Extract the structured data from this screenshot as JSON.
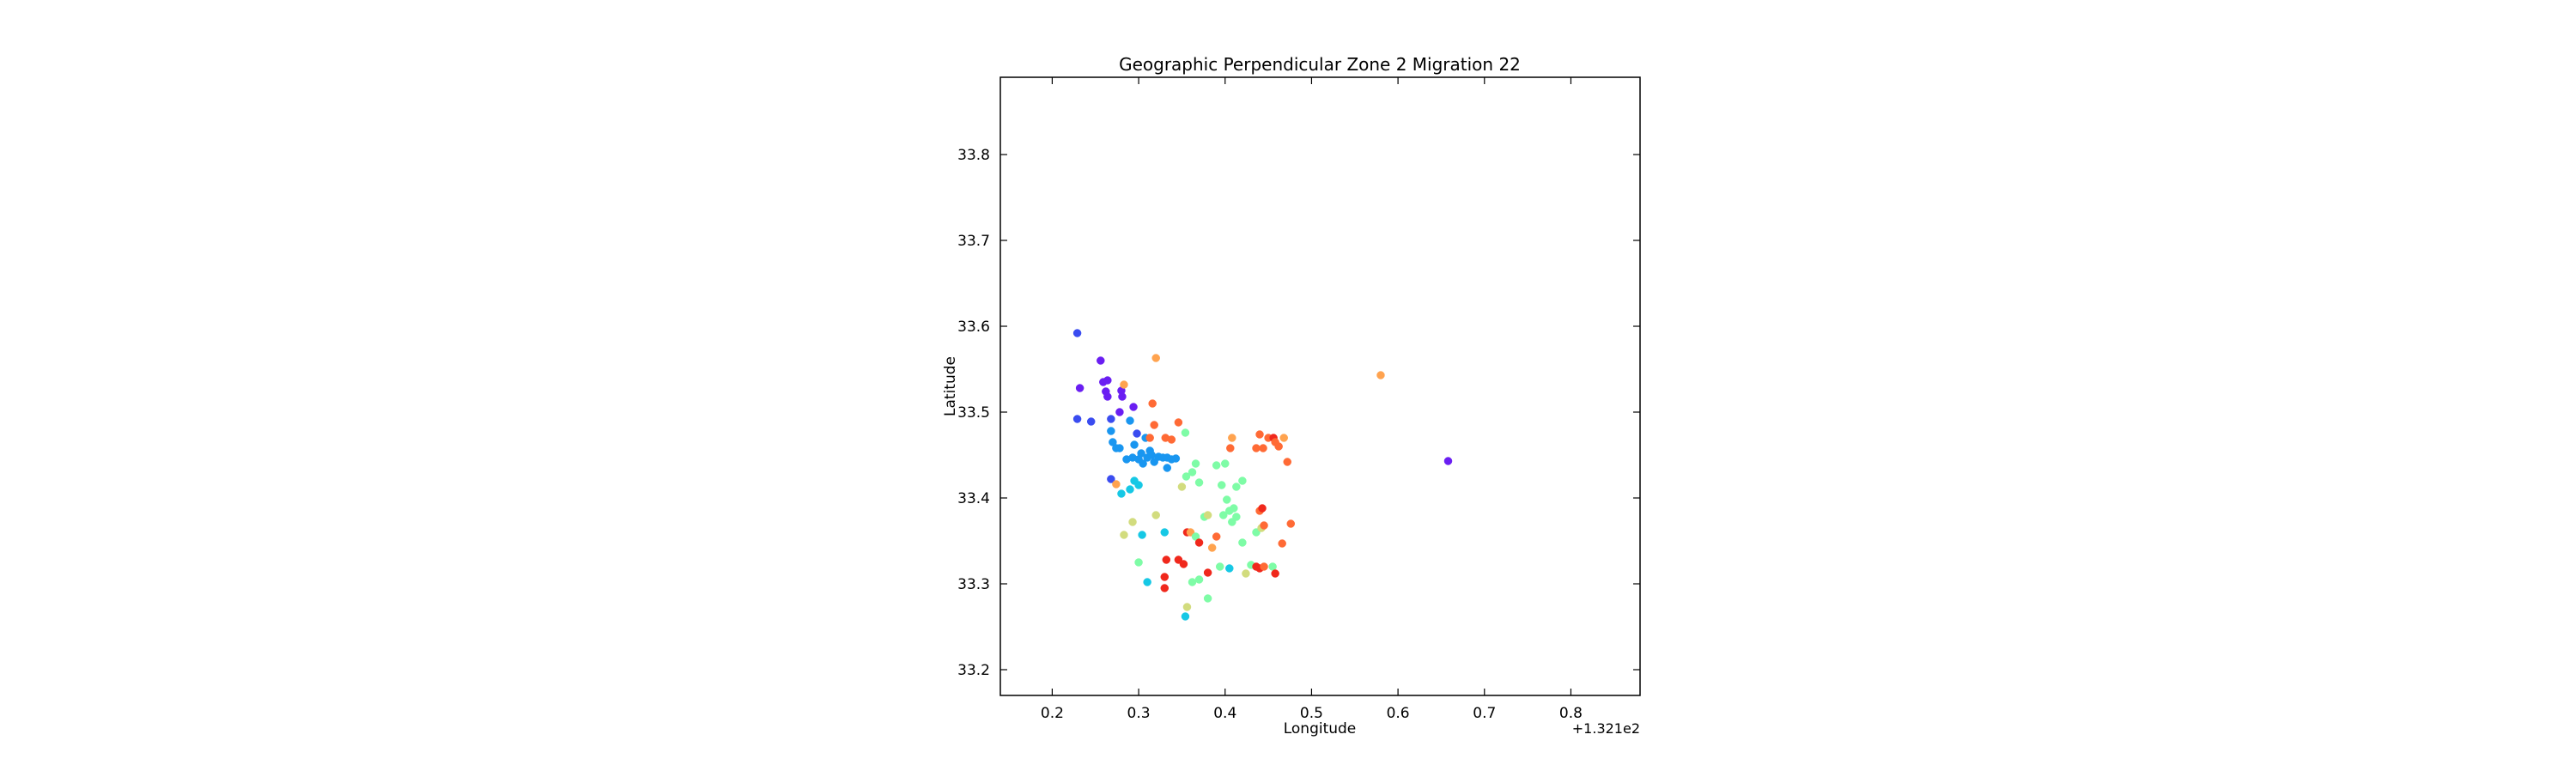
{
  "chart_data": {
    "type": "scatter",
    "title": "Geographic Perpendicular Zone 2 Migration 22",
    "xlabel": "Longitude",
    "ylabel": "Latitude",
    "x_offset_label": "+1.321e2",
    "xlim": [
      0.14,
      0.88
    ],
    "ylim": [
      33.17,
      33.89
    ],
    "x_ticks": [
      0.2,
      0.3,
      0.4,
      0.5,
      0.6,
      0.7,
      0.8
    ],
    "x_tick_labels": [
      "0.2",
      "0.3",
      "0.4",
      "0.5",
      "0.6",
      "0.7",
      "0.8"
    ],
    "y_ticks": [
      33.2,
      33.3,
      33.4,
      33.5,
      33.6,
      33.7,
      33.8
    ],
    "y_tick_labels": [
      "33.2",
      "33.3",
      "33.4",
      "33.5",
      "33.6",
      "33.7",
      "33.8"
    ],
    "grid": false,
    "legend": "none",
    "points": [
      {
        "x": 0.229,
        "y": 33.592,
        "color": "#3a4cf0"
      },
      {
        "x": 0.232,
        "y": 33.528,
        "color": "#6a1ef2"
      },
      {
        "x": 0.229,
        "y": 33.492,
        "color": "#3a4cf0"
      },
      {
        "x": 0.245,
        "y": 33.489,
        "color": "#3a4cf0"
      },
      {
        "x": 0.256,
        "y": 33.56,
        "color": "#6a1ef2"
      },
      {
        "x": 0.259,
        "y": 33.535,
        "color": "#6a1ef2"
      },
      {
        "x": 0.264,
        "y": 33.537,
        "color": "#6a1ef2"
      },
      {
        "x": 0.262,
        "y": 33.524,
        "color": "#6a1ef2"
      },
      {
        "x": 0.264,
        "y": 33.518,
        "color": "#6a1ef2"
      },
      {
        "x": 0.268,
        "y": 33.492,
        "color": "#3a4cf0"
      },
      {
        "x": 0.28,
        "y": 33.525,
        "color": "#6a1ef2"
      },
      {
        "x": 0.281,
        "y": 33.518,
        "color": "#6a1ef2"
      },
      {
        "x": 0.283,
        "y": 33.532,
        "color": "#ffa34f"
      },
      {
        "x": 0.278,
        "y": 33.5,
        "color": "#6a1ef2"
      },
      {
        "x": 0.294,
        "y": 33.506,
        "color": "#6a1ef2"
      },
      {
        "x": 0.29,
        "y": 33.49,
        "color": "#1996f0"
      },
      {
        "x": 0.268,
        "y": 33.478,
        "color": "#1996f0"
      },
      {
        "x": 0.27,
        "y": 33.465,
        "color": "#1996f0"
      },
      {
        "x": 0.274,
        "y": 33.458,
        "color": "#1996f0"
      },
      {
        "x": 0.278,
        "y": 33.458,
        "color": "#1996f0"
      },
      {
        "x": 0.268,
        "y": 33.422,
        "color": "#3a4cf0"
      },
      {
        "x": 0.274,
        "y": 33.416,
        "color": "#ffa34f"
      },
      {
        "x": 0.28,
        "y": 33.405,
        "color": "#16c8e5"
      },
      {
        "x": 0.286,
        "y": 33.445,
        "color": "#1996f0"
      },
      {
        "x": 0.293,
        "y": 33.447,
        "color": "#1996f0"
      },
      {
        "x": 0.295,
        "y": 33.462,
        "color": "#1996f0"
      },
      {
        "x": 0.298,
        "y": 33.475,
        "color": "#3a4cf0"
      },
      {
        "x": 0.3,
        "y": 33.445,
        "color": "#1996f0"
      },
      {
        "x": 0.303,
        "y": 33.452,
        "color": "#1996f0"
      },
      {
        "x": 0.305,
        "y": 33.44,
        "color": "#1996f0"
      },
      {
        "x": 0.308,
        "y": 33.47,
        "color": "#1996f0"
      },
      {
        "x": 0.31,
        "y": 33.447,
        "color": "#1996f0"
      },
      {
        "x": 0.313,
        "y": 33.455,
        "color": "#1996f0"
      },
      {
        "x": 0.315,
        "y": 33.45,
        "color": "#1996f0"
      },
      {
        "x": 0.318,
        "y": 33.442,
        "color": "#1996f0"
      },
      {
        "x": 0.323,
        "y": 33.448,
        "color": "#1996f0"
      },
      {
        "x": 0.328,
        "y": 33.447,
        "color": "#1996f0"
      },
      {
        "x": 0.333,
        "y": 33.447,
        "color": "#1996f0"
      },
      {
        "x": 0.338,
        "y": 33.445,
        "color": "#1996f0"
      },
      {
        "x": 0.343,
        "y": 33.446,
        "color": "#1996f0"
      },
      {
        "x": 0.333,
        "y": 33.435,
        "color": "#1996f0"
      },
      {
        "x": 0.313,
        "y": 33.47,
        "color": "#ff6a35"
      },
      {
        "x": 0.316,
        "y": 33.51,
        "color": "#ff6a35"
      },
      {
        "x": 0.318,
        "y": 33.485,
        "color": "#ff6a35"
      },
      {
        "x": 0.32,
        "y": 33.563,
        "color": "#ffa34f"
      },
      {
        "x": 0.331,
        "y": 33.47,
        "color": "#ff6a35"
      },
      {
        "x": 0.338,
        "y": 33.468,
        "color": "#ff6a35"
      },
      {
        "x": 0.346,
        "y": 33.488,
        "color": "#ff6a35"
      },
      {
        "x": 0.29,
        "y": 33.41,
        "color": "#16c8e5"
      },
      {
        "x": 0.295,
        "y": 33.42,
        "color": "#16c8e5"
      },
      {
        "x": 0.3,
        "y": 33.415,
        "color": "#16c8e5"
      },
      {
        "x": 0.293,
        "y": 33.372,
        "color": "#d2dc7e"
      },
      {
        "x": 0.283,
        "y": 33.357,
        "color": "#d2dc7e"
      },
      {
        "x": 0.304,
        "y": 33.357,
        "color": "#16c8e5"
      },
      {
        "x": 0.3,
        "y": 33.325,
        "color": "#7efca6"
      },
      {
        "x": 0.31,
        "y": 33.302,
        "color": "#16c8e5"
      },
      {
        "x": 0.32,
        "y": 33.38,
        "color": "#d2dc7e"
      },
      {
        "x": 0.33,
        "y": 33.36,
        "color": "#16c8e5"
      },
      {
        "x": 0.332,
        "y": 33.328,
        "color": "#f0281c"
      },
      {
        "x": 0.33,
        "y": 33.308,
        "color": "#f0281c"
      },
      {
        "x": 0.33,
        "y": 33.295,
        "color": "#f0281c"
      },
      {
        "x": 0.346,
        "y": 33.328,
        "color": "#f0281c"
      },
      {
        "x": 0.352,
        "y": 33.323,
        "color": "#f0281c"
      },
      {
        "x": 0.356,
        "y": 33.36,
        "color": "#f0281c"
      },
      {
        "x": 0.36,
        "y": 33.36,
        "color": "#ffa34f"
      },
      {
        "x": 0.366,
        "y": 33.355,
        "color": "#7efca6"
      },
      {
        "x": 0.37,
        "y": 33.348,
        "color": "#f0281c"
      },
      {
        "x": 0.354,
        "y": 33.262,
        "color": "#16c8e5"
      },
      {
        "x": 0.356,
        "y": 33.273,
        "color": "#d2dc7e"
      },
      {
        "x": 0.362,
        "y": 33.302,
        "color": "#7efca6"
      },
      {
        "x": 0.37,
        "y": 33.305,
        "color": "#7efca6"
      },
      {
        "x": 0.38,
        "y": 33.283,
        "color": "#7efca6"
      },
      {
        "x": 0.38,
        "y": 33.313,
        "color": "#f0281c"
      },
      {
        "x": 0.385,
        "y": 33.342,
        "color": "#ffa34f"
      },
      {
        "x": 0.39,
        "y": 33.355,
        "color": "#ff6a35"
      },
      {
        "x": 0.394,
        "y": 33.32,
        "color": "#7efca6"
      },
      {
        "x": 0.405,
        "y": 33.318,
        "color": "#16c8e5"
      },
      {
        "x": 0.35,
        "y": 33.413,
        "color": "#d2dc7e"
      },
      {
        "x": 0.355,
        "y": 33.425,
        "color": "#7efca6"
      },
      {
        "x": 0.362,
        "y": 33.43,
        "color": "#7efca6"
      },
      {
        "x": 0.366,
        "y": 33.44,
        "color": "#7efca6"
      },
      {
        "x": 0.354,
        "y": 33.476,
        "color": "#7efca6"
      },
      {
        "x": 0.37,
        "y": 33.418,
        "color": "#7efca6"
      },
      {
        "x": 0.376,
        "y": 33.378,
        "color": "#7efca6"
      },
      {
        "x": 0.38,
        "y": 33.38,
        "color": "#d2dc7e"
      },
      {
        "x": 0.39,
        "y": 33.438,
        "color": "#7efca6"
      },
      {
        "x": 0.396,
        "y": 33.415,
        "color": "#7efca6"
      },
      {
        "x": 0.398,
        "y": 33.38,
        "color": "#7efca6"
      },
      {
        "x": 0.402,
        "y": 33.398,
        "color": "#7efca6"
      },
      {
        "x": 0.405,
        "y": 33.385,
        "color": "#7efca6"
      },
      {
        "x": 0.408,
        "y": 33.372,
        "color": "#7efca6"
      },
      {
        "x": 0.41,
        "y": 33.388,
        "color": "#7efca6"
      },
      {
        "x": 0.413,
        "y": 33.378,
        "color": "#7efca6"
      },
      {
        "x": 0.4,
        "y": 33.44,
        "color": "#7efca6"
      },
      {
        "x": 0.413,
        "y": 33.413,
        "color": "#7efca6"
      },
      {
        "x": 0.42,
        "y": 33.42,
        "color": "#7efca6"
      },
      {
        "x": 0.408,
        "y": 33.47,
        "color": "#ffa34f"
      },
      {
        "x": 0.406,
        "y": 33.458,
        "color": "#ff6a35"
      },
      {
        "x": 0.42,
        "y": 33.348,
        "color": "#7efca6"
      },
      {
        "x": 0.43,
        "y": 33.322,
        "color": "#7efca6"
      },
      {
        "x": 0.424,
        "y": 33.312,
        "color": "#d2dc7e"
      },
      {
        "x": 0.436,
        "y": 33.32,
        "color": "#f0281c"
      },
      {
        "x": 0.44,
        "y": 33.318,
        "color": "#f0281c"
      },
      {
        "x": 0.445,
        "y": 33.32,
        "color": "#ff6a35"
      },
      {
        "x": 0.436,
        "y": 33.36,
        "color": "#7efca6"
      },
      {
        "x": 0.442,
        "y": 33.365,
        "color": "#d2dc7e"
      },
      {
        "x": 0.445,
        "y": 33.368,
        "color": "#ff6a35"
      },
      {
        "x": 0.44,
        "y": 33.385,
        "color": "#ff6a35"
      },
      {
        "x": 0.443,
        "y": 33.388,
        "color": "#f0281c"
      },
      {
        "x": 0.455,
        "y": 33.32,
        "color": "#7efca6"
      },
      {
        "x": 0.458,
        "y": 33.312,
        "color": "#f0281c"
      },
      {
        "x": 0.466,
        "y": 33.347,
        "color": "#ff6a35"
      },
      {
        "x": 0.476,
        "y": 33.37,
        "color": "#ff6a35"
      },
      {
        "x": 0.436,
        "y": 33.458,
        "color": "#ff6a35"
      },
      {
        "x": 0.44,
        "y": 33.474,
        "color": "#ff6a35"
      },
      {
        "x": 0.444,
        "y": 33.458,
        "color": "#ff6a35"
      },
      {
        "x": 0.45,
        "y": 33.47,
        "color": "#ff6a35"
      },
      {
        "x": 0.456,
        "y": 33.47,
        "color": "#f0281c"
      },
      {
        "x": 0.458,
        "y": 33.465,
        "color": "#ff6a35"
      },
      {
        "x": 0.462,
        "y": 33.46,
        "color": "#ff6a35"
      },
      {
        "x": 0.468,
        "y": 33.47,
        "color": "#ffa34f"
      },
      {
        "x": 0.472,
        "y": 33.442,
        "color": "#ff6a35"
      },
      {
        "x": 0.58,
        "y": 33.543,
        "color": "#ffa34f"
      },
      {
        "x": 0.658,
        "y": 33.443,
        "color": "#6a1ef2"
      }
    ]
  }
}
